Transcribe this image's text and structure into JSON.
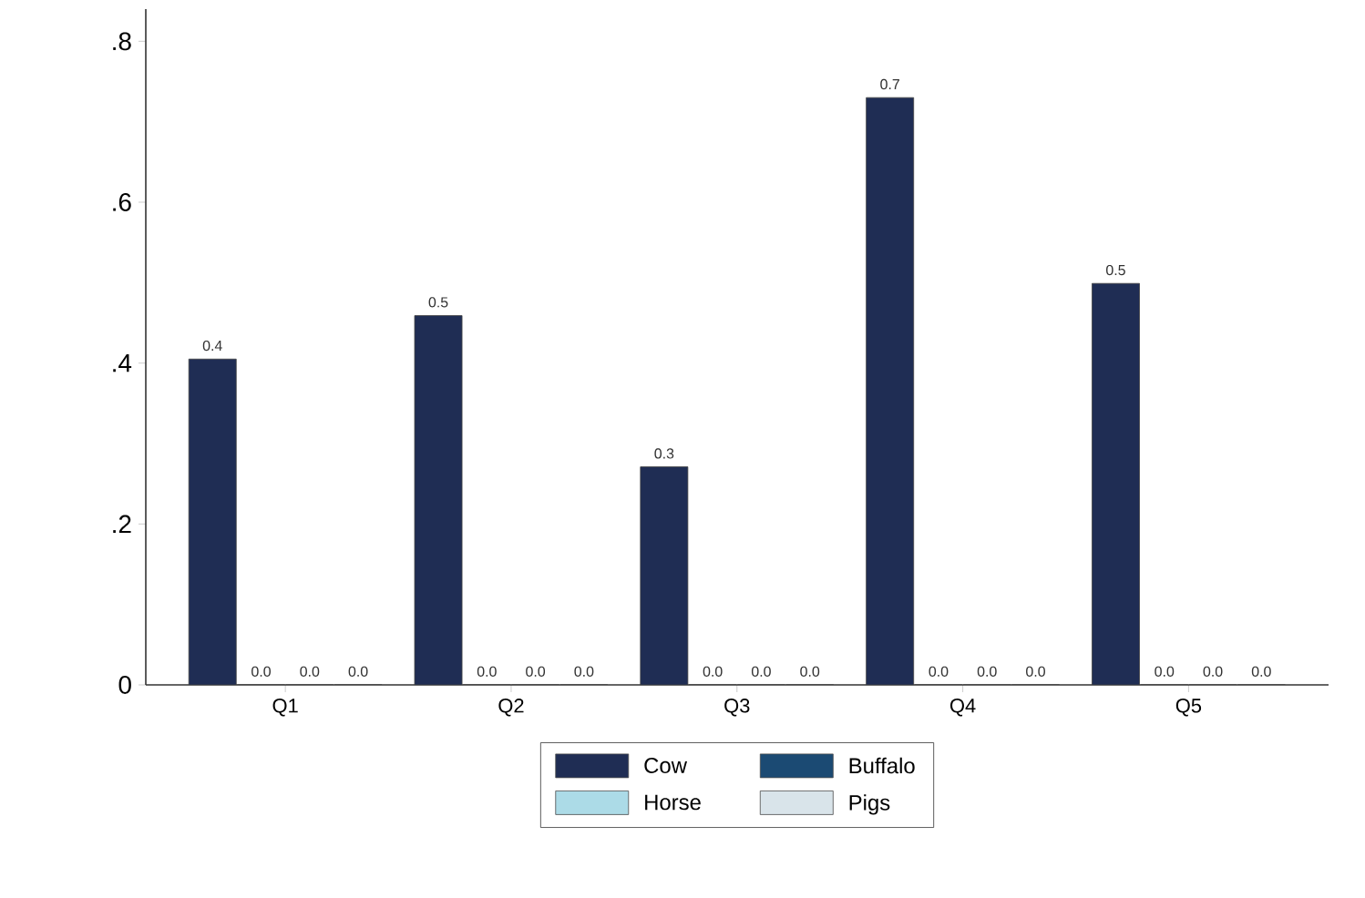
{
  "chart_data": {
    "type": "bar",
    "categories": [
      "Q1",
      "Q2",
      "Q3",
      "Q4",
      "Q5"
    ],
    "series": [
      {
        "name": "Cow",
        "color": "#1f2d54",
        "values": [
          0.405,
          0.459,
          0.271,
          0.73,
          0.499
        ],
        "value_labels": [
          "0.4",
          "0.5",
          "0.3",
          "0.7",
          "0.5"
        ]
      },
      {
        "name": "Buffalo",
        "color": "#1b4a73",
        "values": [
          0,
          0,
          0,
          0,
          0
        ],
        "value_labels": [
          "0.0",
          "0.0",
          "0.0",
          "0.0",
          "0.0"
        ]
      },
      {
        "name": "Horse",
        "color": "#acdbe7",
        "values": [
          0,
          0,
          0,
          0,
          0
        ],
        "value_labels": [
          "0.0",
          "0.0",
          "0.0",
          "0.0",
          "0.0"
        ]
      },
      {
        "name": "Pigs",
        "color": "#d9e4ea",
        "values": [
          0,
          0,
          0,
          0,
          0
        ],
        "value_labels": [
          "0.0",
          "0.0",
          "0.0",
          "0.0",
          "0.0"
        ]
      }
    ],
    "ylim": [
      0,
      0.84
    ],
    "yticks": [
      {
        "value": 0,
        "label": "0"
      },
      {
        "value": 0.2,
        "label": ".2"
      },
      {
        "value": 0.4,
        "label": ".4"
      },
      {
        "value": 0.6,
        "label": ".6"
      },
      {
        "value": 0.8,
        "label": ".8"
      }
    ],
    "grid": false,
    "legend": "bottom"
  }
}
